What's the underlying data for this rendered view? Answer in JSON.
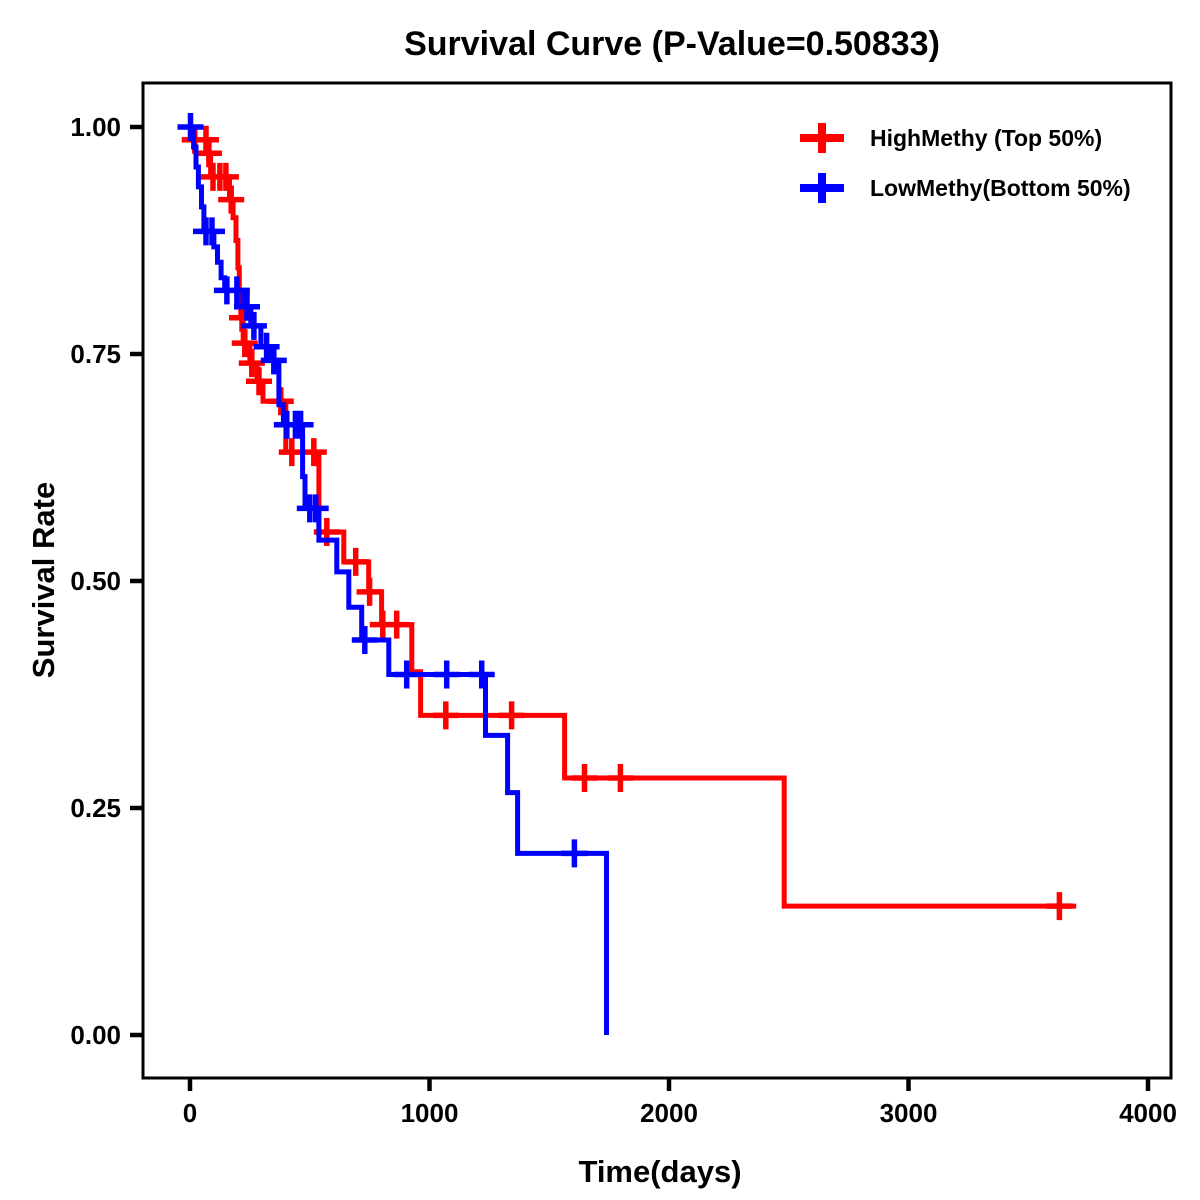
{
  "figure": {
    "background": "#FFFFFF",
    "border_color": "#000000"
  },
  "chart_data": {
    "type": "line",
    "subtype": "kaplan-meier-step-survival",
    "title": "Survival Curve (P-Value=0.50833)",
    "p_value": "0.50833",
    "xlabel": "Time(days)",
    "ylabel": "Survival Rate",
    "grid": false,
    "legend_position": "top-right-inside",
    "x_axis": {
      "ticks": [
        0,
        1000,
        2000,
        3000,
        4000
      ],
      "labels": [
        "0",
        "1000",
        "2000",
        "3000",
        "4000"
      ],
      "range": [
        -200,
        4095
      ]
    },
    "y_axis": {
      "ticks": [
        1.0,
        0.75,
        0.5,
        0.25,
        0.0
      ],
      "labels": [
        "1.00",
        "0.75",
        "0.50",
        "0.25",
        "0.00"
      ],
      "range": [
        -0.048,
        1.048
      ]
    },
    "series": [
      {
        "name": "HighMethy (Top 50%)",
        "color": "#FF0000",
        "marker": "plus-censor",
        "end_time": 3700,
        "steps": [
          [
            0,
            1.0
          ],
          [
            12,
            0.986
          ],
          [
            75,
            0.971
          ],
          [
            86,
            0.945
          ],
          [
            165,
            0.92
          ],
          [
            180,
            0.9
          ],
          [
            192,
            0.875
          ],
          [
            200,
            0.845
          ],
          [
            206,
            0.82
          ],
          [
            212,
            0.79
          ],
          [
            222,
            0.762
          ],
          [
            250,
            0.74
          ],
          [
            280,
            0.72
          ],
          [
            305,
            0.698
          ],
          [
            400,
            0.642
          ],
          [
            538,
            0.554
          ],
          [
            642,
            0.521
          ],
          [
            746,
            0.488
          ],
          [
            800,
            0.452
          ],
          [
            926,
            0.4
          ],
          [
            963,
            0.352
          ],
          [
            1564,
            0.283
          ],
          [
            2481,
            0.142
          ]
        ],
        "censors": [
          [
            20,
            0.986
          ],
          [
            67,
            0.986
          ],
          [
            79,
            0.971
          ],
          [
            96,
            0.945
          ],
          [
            125,
            0.945
          ],
          [
            150,
            0.945
          ],
          [
            172,
            0.92
          ],
          [
            217,
            0.79
          ],
          [
            229,
            0.762
          ],
          [
            258,
            0.74
          ],
          [
            288,
            0.72
          ],
          [
            379,
            0.698
          ],
          [
            425,
            0.642
          ],
          [
            517,
            0.642
          ],
          [
            571,
            0.554
          ],
          [
            692,
            0.521
          ],
          [
            750,
            0.488
          ],
          [
            805,
            0.452
          ],
          [
            863,
            0.452
          ],
          [
            1068,
            0.352
          ],
          [
            1343,
            0.352
          ],
          [
            1647,
            0.283
          ],
          [
            1797,
            0.283
          ],
          [
            3630,
            0.142
          ]
        ]
      },
      {
        "name": "LowMethy(Bottom 50%)",
        "color": "#0000FF",
        "marker": "plus-censor",
        "end_time": 1739,
        "steps": [
          [
            0,
            1.0
          ],
          [
            15,
            0.978
          ],
          [
            25,
            0.956
          ],
          [
            35,
            0.934
          ],
          [
            48,
            0.912
          ],
          [
            58,
            0.885
          ],
          [
            100,
            0.868
          ],
          [
            115,
            0.851
          ],
          [
            130,
            0.834
          ],
          [
            145,
            0.82
          ],
          [
            221,
            0.802
          ],
          [
            254,
            0.781
          ],
          [
            296,
            0.758
          ],
          [
            335,
            0.743
          ],
          [
            371,
            0.694
          ],
          [
            390,
            0.672
          ],
          [
            470,
            0.615
          ],
          [
            480,
            0.58
          ],
          [
            538,
            0.545
          ],
          [
            613,
            0.51
          ],
          [
            663,
            0.471
          ],
          [
            717,
            0.435
          ],
          [
            830,
            0.397
          ],
          [
            1234,
            0.33
          ],
          [
            1326,
            0.267
          ],
          [
            1368,
            0.2
          ],
          [
            1739,
            0.0
          ]
        ],
        "censors": [
          [
            2,
            1.0
          ],
          [
            67,
            0.885
          ],
          [
            92,
            0.885
          ],
          [
            154,
            0.82
          ],
          [
            196,
            0.82
          ],
          [
            238,
            0.802
          ],
          [
            267,
            0.781
          ],
          [
            320,
            0.758
          ],
          [
            350,
            0.743
          ],
          [
            404,
            0.672
          ],
          [
            440,
            0.672
          ],
          [
            462,
            0.672
          ],
          [
            500,
            0.58
          ],
          [
            525,
            0.58
          ],
          [
            730,
            0.435
          ],
          [
            905,
            0.397
          ],
          [
            1072,
            0.397
          ],
          [
            1218,
            0.397
          ],
          [
            1605,
            0.2
          ]
        ]
      }
    ]
  }
}
